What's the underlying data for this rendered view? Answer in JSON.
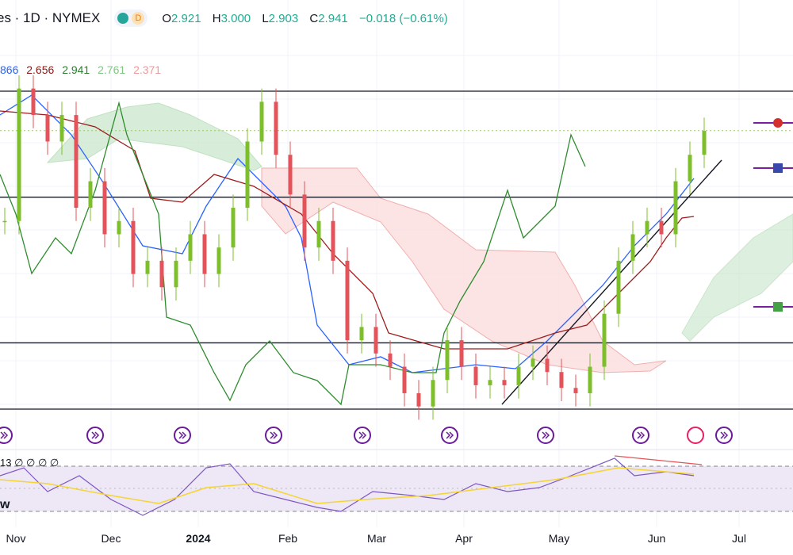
{
  "header": {
    "symbol": "es · 1D · NYMEX",
    "badge_letter": "D",
    "open_label": "O",
    "open": "2.921",
    "high_label": "H",
    "high": "3.000",
    "low_label": "L",
    "low": "2.903",
    "close_label": "C",
    "close": "2.941",
    "change": "−0.018 (−0.61%)"
  },
  "ichimoku_values": [
    {
      "text": "866",
      "color": "#2962ff"
    },
    {
      "text": "2.656",
      "color": "#8b1a1a"
    },
    {
      "text": "2.941",
      "color": "#2e7d32"
    },
    {
      "text": "2.761",
      "color": "#81c784"
    },
    {
      "text": "2.371",
      "color": "#ef9a9a"
    }
  ],
  "rsi_header": "13 ∅ ∅ ∅ ∅",
  "rsi_title_fragment": "w",
  "colors": {
    "up": "#7cbf2a",
    "down": "#e5535a",
    "tenkan": "#2962ff",
    "kijun": "#9b1c1c",
    "chikou": "#2e8b2e",
    "cloud_bull": "#c8e6c9",
    "cloud_bear": "#fcdede",
    "rsi": "#7e57c2",
    "rsi_ma": "#f5d533",
    "rsi_band": "#ede7f6"
  },
  "chart_data": {
    "type": "candlestick",
    "timeframe": "1D",
    "exchange": "NYMEX",
    "price_axis": [
      1.85,
      3.2
    ],
    "months": [
      "Nov",
      "Dec",
      "2024",
      "Feb",
      "Mar",
      "Apr",
      "May",
      "Jun",
      "Jul"
    ],
    "horizontal_levels": [
      3.09,
      2.69,
      2.14,
      1.89
    ],
    "trendline": {
      "from": [
        "2024-04-15",
        1.9
      ],
      "to": [
        "2024-06-20",
        2.75
      ]
    },
    "current_price": 2.941,
    "price_markers": [
      "1"
    ],
    "candles_close_path": [
      [
        0,
        2.6
      ],
      [
        3,
        3.1
      ],
      [
        6,
        3.0
      ],
      [
        9,
        2.9
      ],
      [
        12,
        3.0
      ],
      [
        15,
        2.65
      ],
      [
        18,
        2.75
      ],
      [
        21,
        2.55
      ],
      [
        24,
        2.6
      ],
      [
        27,
        2.4
      ],
      [
        30,
        2.45
      ],
      [
        33,
        2.35
      ],
      [
        36,
        2.45
      ],
      [
        39,
        2.55
      ],
      [
        42,
        2.4
      ],
      [
        45,
        2.5
      ],
      [
        48,
        2.65
      ],
      [
        51,
        2.9
      ],
      [
        54,
        3.05
      ],
      [
        57,
        2.85
      ],
      [
        60,
        2.7
      ],
      [
        63,
        2.5
      ],
      [
        66,
        2.6
      ],
      [
        69,
        2.45
      ],
      [
        72,
        2.15
      ],
      [
        75,
        2.2
      ],
      [
        78,
        2.1
      ],
      [
        81,
        2.05
      ],
      [
        84,
        1.95
      ],
      [
        87,
        1.9
      ],
      [
        90,
        2.0
      ],
      [
        93,
        2.15
      ],
      [
        96,
        2.05
      ],
      [
        99,
        1.98
      ],
      [
        102,
        2.0
      ],
      [
        105,
        1.98
      ],
      [
        108,
        2.05
      ],
      [
        111,
        2.08
      ],
      [
        114,
        2.03
      ],
      [
        117,
        1.97
      ],
      [
        120,
        1.95
      ],
      [
        123,
        2.05
      ],
      [
        126,
        2.25
      ],
      [
        129,
        2.45
      ],
      [
        132,
        2.55
      ],
      [
        135,
        2.6
      ],
      [
        138,
        2.55
      ],
      [
        141,
        2.75
      ],
      [
        144,
        2.85
      ],
      [
        147,
        2.94
      ]
    ],
    "rsi_range": [
      0,
      100
    ],
    "rsi_bands": [
      70,
      30
    ]
  }
}
